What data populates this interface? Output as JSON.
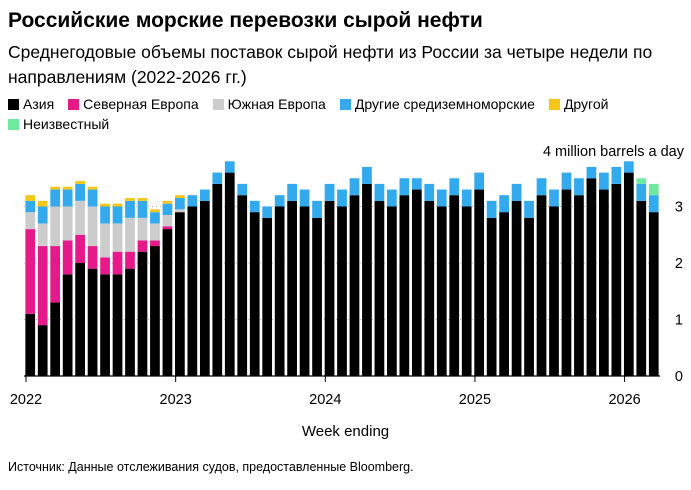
{
  "title": "Российские морские перевозки сырой нефти",
  "subtitle": "Среднегодовые объемы поставок сырой нефти из России за четыре недели по направлениям (2022-2026 гг.)",
  "unit_label": "4 million barrels a day",
  "source": "Источник: Данные отслеживания судов, предоставленные Bloomberg.",
  "legend": [
    {
      "label": "Азия",
      "color": "#000000"
    },
    {
      "label": "Северная Европа",
      "color": "#e6198a"
    },
    {
      "label": "Южная Европа",
      "color": "#cccccc"
    },
    {
      "label": "Другие средиземноморские",
      "color": "#33aaee"
    },
    {
      "label": "Другой",
      "color": "#f5c518"
    },
    {
      "label": "Неизвестный",
      "color": "#6fe8a0"
    }
  ],
  "chart_data": {
    "type": "bar",
    "stacked": true,
    "title": "Российские морские перевозки сырой нефти",
    "xlabel": "Week ending",
    "ylabel": "million barrels a day",
    "ylim": [
      0,
      4
    ],
    "yticks": [
      0,
      1,
      2,
      3
    ],
    "ytick_labels": [
      "0",
      "1",
      "2",
      "3"
    ],
    "top_label": "4 million barrels a day",
    "xticks": [
      "2022",
      "2023",
      "2024",
      "2025",
      "2026"
    ],
    "series_names": [
      "Азия",
      "Северная Европа",
      "Южная Европа",
      "Другие средиземноморские",
      "Другой",
      "Неизвестный"
    ],
    "sample_interval": "4 weeks",
    "x": [
      "2022-01",
      "2022-02",
      "2022-03",
      "2022-04",
      "2022-05",
      "2022-06",
      "2022-07",
      "2022-08",
      "2022-09",
      "2022-10",
      "2022-11",
      "2022-12",
      "2023-01",
      "2023-02",
      "2023-03",
      "2023-04",
      "2023-05",
      "2023-06",
      "2023-07",
      "2023-08",
      "2023-09",
      "2023-10",
      "2023-11",
      "2023-12",
      "2024-01",
      "2024-02",
      "2024-03",
      "2024-04",
      "2024-05",
      "2024-06",
      "2024-07",
      "2024-08",
      "2024-09",
      "2024-10",
      "2024-11",
      "2024-12",
      "2025-01",
      "2025-02",
      "2025-03",
      "2025-04",
      "2025-05",
      "2025-06",
      "2025-07",
      "2025-08",
      "2025-09",
      "2025-10",
      "2025-11",
      "2025-12",
      "2026-01",
      "2026-02",
      "2026-03"
    ],
    "series": [
      {
        "name": "Азия",
        "values": [
          1.1,
          0.9,
          1.3,
          1.8,
          2.0,
          1.9,
          1.8,
          1.8,
          1.9,
          2.2,
          2.3,
          2.6,
          2.9,
          3.0,
          3.1,
          3.4,
          3.6,
          3.2,
          2.9,
          2.8,
          3.0,
          3.1,
          3.0,
          2.8,
          3.1,
          3.0,
          3.2,
          3.4,
          3.1,
          3.0,
          3.2,
          3.3,
          3.1,
          3.0,
          3.2,
          3.0,
          3.3,
          2.8,
          2.9,
          3.1,
          2.8,
          3.2,
          3.0,
          3.3,
          3.2,
          3.5,
          3.3,
          3.4,
          3.6,
          3.1,
          2.9
        ]
      },
      {
        "name": "Северная Европа",
        "values": [
          1.5,
          1.4,
          1.0,
          0.6,
          0.5,
          0.4,
          0.3,
          0.4,
          0.3,
          0.2,
          0.1,
          0.05,
          0.0,
          0.0,
          0.0,
          0.0,
          0.0,
          0.0,
          0.0,
          0.0,
          0.0,
          0.0,
          0.0,
          0.0,
          0.0,
          0.0,
          0.0,
          0.0,
          0.0,
          0.0,
          0.0,
          0.0,
          0.0,
          0.0,
          0.0,
          0.0,
          0.0,
          0.0,
          0.0,
          0.0,
          0.0,
          0.0,
          0.0,
          0.0,
          0.0,
          0.0,
          0.0,
          0.0,
          0.0,
          0.0,
          0.0
        ]
      },
      {
        "name": "Южная Европа",
        "values": [
          0.3,
          0.4,
          0.7,
          0.6,
          0.6,
          0.7,
          0.6,
          0.5,
          0.6,
          0.4,
          0.3,
          0.2,
          0.05,
          0.0,
          0.0,
          0.0,
          0.0,
          0.0,
          0.0,
          0.0,
          0.0,
          0.0,
          0.0,
          0.0,
          0.0,
          0.0,
          0.0,
          0.0,
          0.0,
          0.0,
          0.0,
          0.0,
          0.0,
          0.0,
          0.0,
          0.0,
          0.0,
          0.0,
          0.0,
          0.0,
          0.0,
          0.0,
          0.0,
          0.0,
          0.0,
          0.0,
          0.0,
          0.0,
          0.0,
          0.0,
          0.0
        ]
      },
      {
        "name": "Другие средиземноморские",
        "values": [
          0.2,
          0.3,
          0.3,
          0.3,
          0.3,
          0.3,
          0.3,
          0.3,
          0.3,
          0.3,
          0.2,
          0.2,
          0.2,
          0.2,
          0.2,
          0.2,
          0.2,
          0.2,
          0.2,
          0.2,
          0.2,
          0.3,
          0.3,
          0.3,
          0.3,
          0.3,
          0.3,
          0.3,
          0.3,
          0.3,
          0.3,
          0.2,
          0.3,
          0.3,
          0.3,
          0.3,
          0.3,
          0.3,
          0.3,
          0.3,
          0.3,
          0.3,
          0.3,
          0.3,
          0.3,
          0.2,
          0.3,
          0.3,
          0.2,
          0.3,
          0.3
        ]
      },
      {
        "name": "Другой",
        "values": [
          0.1,
          0.1,
          0.05,
          0.05,
          0.05,
          0.05,
          0.05,
          0.05,
          0.05,
          0.05,
          0.05,
          0.05,
          0.05,
          0.0,
          0.0,
          0.0,
          0.0,
          0.0,
          0.0,
          0.0,
          0.0,
          0.0,
          0.0,
          0.0,
          0.0,
          0.0,
          0.0,
          0.0,
          0.0,
          0.0,
          0.0,
          0.0,
          0.0,
          0.0,
          0.0,
          0.0,
          0.0,
          0.0,
          0.0,
          0.0,
          0.0,
          0.0,
          0.0,
          0.0,
          0.0,
          0.0,
          0.0,
          0.0,
          0.0,
          0.0,
          0.0
        ]
      },
      {
        "name": "Неизвестный",
        "values": [
          0.0,
          0.0,
          0.0,
          0.0,
          0.0,
          0.0,
          0.0,
          0.0,
          0.0,
          0.0,
          0.0,
          0.0,
          0.0,
          0.0,
          0.0,
          0.0,
          0.0,
          0.0,
          0.0,
          0.0,
          0.0,
          0.0,
          0.0,
          0.0,
          0.0,
          0.0,
          0.0,
          0.0,
          0.0,
          0.0,
          0.0,
          0.0,
          0.0,
          0.0,
          0.0,
          0.0,
          0.0,
          0.0,
          0.0,
          0.0,
          0.0,
          0.0,
          0.0,
          0.0,
          0.0,
          0.0,
          0.0,
          0.0,
          0.0,
          0.1,
          0.2
        ]
      }
    ]
  }
}
